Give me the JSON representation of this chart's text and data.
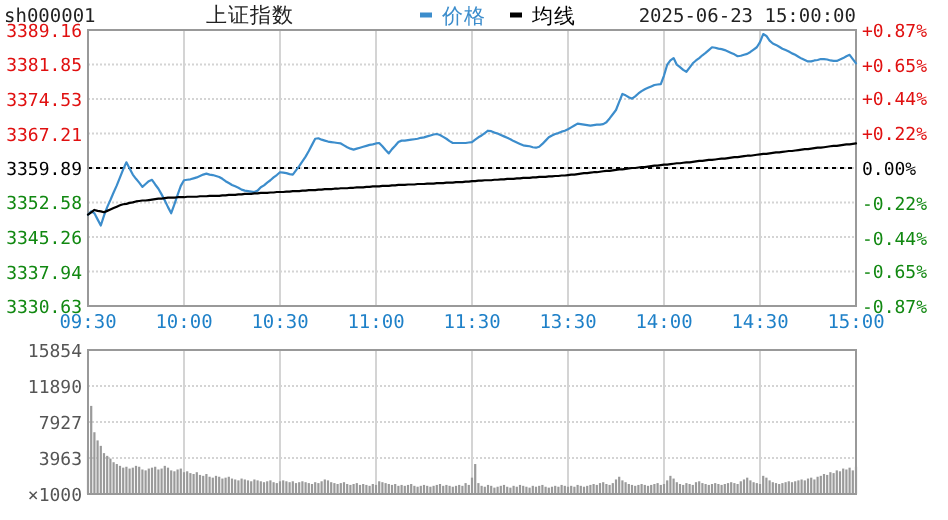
{
  "chart_data": [
    {
      "type": "line",
      "title": "上证指数",
      "annotations": [
        "sh000001",
        "2025-06-23 15:00:00"
      ],
      "legend": "top",
      "grid": true,
      "categories": [
        "09:30",
        null,
        null,
        null,
        null,
        null,
        null,
        null,
        null,
        null,
        null,
        null,
        null,
        null,
        null,
        null,
        null,
        null,
        null,
        null,
        null,
        null,
        null,
        null,
        null,
        null,
        null,
        null,
        null,
        null,
        "10:00",
        null,
        null,
        null,
        null,
        null,
        null,
        null,
        null,
        null,
        null,
        null,
        null,
        null,
        null,
        null,
        null,
        null,
        null,
        null,
        null,
        null,
        null,
        null,
        null,
        null,
        null,
        null,
        null,
        null,
        "10:30",
        null,
        null,
        null,
        null,
        null,
        null,
        null,
        null,
        null,
        null,
        null,
        null,
        null,
        null,
        null,
        null,
        null,
        null,
        null,
        null,
        null,
        null,
        null,
        null,
        null,
        null,
        null,
        null,
        null,
        "11:00",
        null,
        null,
        null,
        null,
        null,
        null,
        null,
        null,
        null,
        null,
        null,
        null,
        null,
        null,
        null,
        null,
        null,
        null,
        null,
        null,
        null,
        null,
        null,
        null,
        null,
        null,
        null,
        null,
        null,
        "11:30",
        null,
        null,
        null,
        null,
        null,
        null,
        null,
        null,
        null,
        null,
        null,
        null,
        null,
        null,
        null,
        null,
        null,
        null,
        null,
        null,
        null,
        null,
        null,
        null,
        null,
        null,
        null,
        null,
        null,
        "13:30",
        null,
        null,
        null,
        null,
        null,
        null,
        null,
        null,
        null,
        null,
        null,
        null,
        null,
        null,
        null,
        null,
        null,
        null,
        null,
        null,
        null,
        null,
        null,
        null,
        null,
        null,
        null,
        null,
        null,
        "14:00",
        null,
        null,
        null,
        null,
        null,
        null,
        null,
        null,
        null,
        null,
        null,
        null,
        null,
        null,
        null,
        null,
        null,
        null,
        null,
        null,
        null,
        null,
        null,
        null,
        null,
        null,
        null,
        null,
        null,
        "14:30",
        null,
        null,
        null,
        null,
        null,
        null,
        null,
        null,
        null,
        null,
        null,
        null,
        null,
        null,
        null,
        null,
        null,
        null,
        null,
        null,
        null,
        null,
        null,
        null,
        null,
        null,
        null,
        null,
        null,
        "15:00"
      ],
      "ylim": [
        3330.63,
        3389.16
      ],
      "yticks": [
        3330.63,
        3337.94,
        3345.26,
        3352.58,
        3359.89,
        3367.21,
        3374.53,
        3381.85,
        3389.16
      ],
      "y2lim": [
        -0.87,
        0.87
      ],
      "y2ticks": [
        {
          "value": -0.87,
          "label": "-0.87%"
        },
        {
          "value": -0.65,
          "label": "-0.65%"
        },
        {
          "value": -0.44,
          "label": "-0.44%"
        },
        {
          "value": -0.22,
          "label": "-0.22%"
        },
        {
          "value": 0,
          "label": "0.00%"
        },
        {
          "value": 0.22,
          "label": "+0.22%"
        },
        {
          "value": 0.44,
          "label": "+0.44%"
        },
        {
          "value": 0.65,
          "label": "+0.65%"
        },
        {
          "value": 0.87,
          "label": "+0.87%"
        }
      ],
      "ref_lines": [
        {
          "axis": "y",
          "value": 3359.89,
          "color": "#000000",
          "line_style": "dashed"
        }
      ],
      "series": [
        {
          "name": "价格",
          "color": "#3c8dcc",
          "values": [
            3350.0,
            3350.7,
            3350.3,
            3349.0,
            3347.7,
            3349.8,
            3351.6,
            3353.1,
            3354.7,
            3356.2,
            3357.9,
            3359.6,
            3361.1,
            3359.8,
            3358.5,
            3357.6,
            3356.8,
            3355.9,
            3356.5,
            3357.1,
            3357.4,
            3356.4,
            3355.5,
            3354.3,
            3353.0,
            3351.6,
            3350.3,
            3352.2,
            3354.2,
            3356.1,
            3357.3,
            3357.4,
            3357.5,
            3357.7,
            3357.9,
            3358.2,
            3358.5,
            3358.7,
            3358.5,
            3358.4,
            3358.2,
            3358.0,
            3357.6,
            3357.1,
            3356.7,
            3356.3,
            3356.0,
            3355.7,
            3355.3,
            3355.1,
            3355.0,
            3354.9,
            3354.8,
            3355.1,
            3355.8,
            3356.2,
            3356.8,
            3357.3,
            3357.9,
            3358.4,
            3359.0,
            3358.9,
            3358.8,
            3358.6,
            3358.5,
            3359.4,
            3360.3,
            3361.3,
            3362.3,
            3363.5,
            3364.8,
            3366.1,
            3366.2,
            3365.9,
            3365.7,
            3365.5,
            3365.4,
            3365.3,
            3365.2,
            3365.1,
            3364.7,
            3364.3,
            3364.0,
            3363.8,
            3364.0,
            3364.2,
            3364.4,
            3364.6,
            3364.8,
            3364.9,
            3365.1,
            3365.2,
            3364.5,
            3363.7,
            3363.0,
            3363.9,
            3364.6,
            3365.4,
            3365.7,
            3365.7,
            3365.8,
            3365.9,
            3366.0,
            3366.1,
            3366.3,
            3366.4,
            3366.6,
            3366.8,
            3367.0,
            3367.1,
            3366.9,
            3366.5,
            3366.1,
            3365.6,
            3365.2,
            3365.2,
            3365.2,
            3365.2,
            3365.2,
            3365.3,
            3365.4,
            3365.9,
            3366.4,
            3366.8,
            3367.3,
            3367.8,
            3367.7,
            3367.4,
            3367.2,
            3366.9,
            3366.6,
            3366.3,
            3366.0,
            3365.6,
            3365.3,
            3365.0,
            3364.7,
            3364.6,
            3364.5,
            3364.3,
            3364.2,
            3364.4,
            3365.0,
            3365.7,
            3366.4,
            3366.8,
            3367.1,
            3367.3,
            3367.6,
            3367.8,
            3368.1,
            3368.5,
            3368.9,
            3369.3,
            3369.2,
            3369.1,
            3369.0,
            3368.9,
            3369.0,
            3369.1,
            3369.1,
            3369.2,
            3369.6,
            3370.4,
            3371.3,
            3372.2,
            3373.9,
            3375.6,
            3375.3,
            3374.9,
            3374.6,
            3375.1,
            3375.7,
            3376.2,
            3376.6,
            3376.9,
            3377.2,
            3377.5,
            3377.6,
            3377.7,
            3379.5,
            3381.8,
            3382.7,
            3383.2,
            3381.8,
            3381.3,
            3380.7,
            3380.3,
            3381.2,
            3382.1,
            3382.7,
            3383.2,
            3383.8,
            3384.3,
            3384.9,
            3385.5,
            3385.4,
            3385.2,
            3385.1,
            3384.9,
            3384.6,
            3384.3,
            3384.0,
            3383.6,
            3383.7,
            3383.9,
            3384.1,
            3384.5,
            3385.0,
            3385.5,
            3386.6,
            3388.3,
            3387.9,
            3386.9,
            3386.3,
            3386.0,
            3385.6,
            3385.2,
            3384.9,
            3384.6,
            3384.2,
            3383.9,
            3383.5,
            3383.1,
            3382.8,
            3382.5,
            3382.5,
            3382.7,
            3382.8,
            3383.0,
            3383.0,
            3382.9,
            3382.7,
            3382.6,
            3382.6,
            3382.9,
            3383.2,
            3383.6,
            3383.9,
            3383.0,
            3382.1
          ]
        },
        {
          "name": "均线",
          "color": "#000000",
          "values": [
            3350.0,
            3350.5,
            3351.0,
            3350.8,
            3350.7,
            3350.5,
            3350.8,
            3351.1,
            3351.4,
            3351.7,
            3352.0,
            3352.2,
            3352.3,
            3352.5,
            3352.6,
            3352.8,
            3352.9,
            3353.0,
            3353.0,
            3353.1,
            3353.2,
            3353.3,
            3353.4,
            3353.4,
            3353.5,
            3353.6,
            3353.6,
            3353.6,
            3353.7,
            3353.7,
            3353.7,
            3353.8,
            3353.8,
            3353.8,
            3353.8,
            3353.9,
            3353.9,
            3353.9,
            3354.0,
            3354.0,
            3354.0,
            3354.0,
            3354.1,
            3354.1,
            3354.2,
            3354.2,
            3354.2,
            3354.3,
            3354.3,
            3354.4,
            3354.4,
            3354.4,
            3354.5,
            3354.5,
            3354.6,
            3354.6,
            3354.6,
            3354.7,
            3354.7,
            3354.8,
            3354.8,
            3354.8,
            3354.9,
            3354.9,
            3355.0,
            3355.0,
            3355.0,
            3355.1,
            3355.1,
            3355.2,
            3355.2,
            3355.2,
            3355.3,
            3355.3,
            3355.4,
            3355.4,
            3355.4,
            3355.5,
            3355.5,
            3355.6,
            3355.6,
            3355.6,
            3355.7,
            3355.7,
            3355.8,
            3355.8,
            3355.8,
            3355.9,
            3355.9,
            3356.0,
            3356.0,
            3356.0,
            3356.1,
            3356.1,
            3356.1,
            3356.2,
            3356.2,
            3356.3,
            3356.3,
            3356.3,
            3356.4,
            3356.4,
            3356.4,
            3356.5,
            3356.5,
            3356.5,
            3356.6,
            3356.6,
            3356.6,
            3356.7,
            3356.7,
            3356.7,
            3356.8,
            3356.8,
            3356.8,
            3356.9,
            3356.9,
            3356.9,
            3357.0,
            3357.0,
            3357.1,
            3357.1,
            3357.2,
            3357.2,
            3357.3,
            3357.3,
            3357.3,
            3357.4,
            3357.4,
            3357.5,
            3357.5,
            3357.6,
            3357.6,
            3357.6,
            3357.7,
            3357.7,
            3357.8,
            3357.8,
            3357.8,
            3357.9,
            3357.9,
            3358.0,
            3358.0,
            3358.0,
            3358.1,
            3358.1,
            3358.2,
            3358.2,
            3358.3,
            3358.3,
            3358.4,
            3358.5,
            3358.5,
            3358.6,
            3358.7,
            3358.8,
            3358.8,
            3358.9,
            3359.0,
            3359.0,
            3359.1,
            3359.2,
            3359.3,
            3359.3,
            3359.4,
            3359.5,
            3359.6,
            3359.6,
            3359.7,
            3359.8,
            3359.9,
            3359.9,
            3360.0,
            3360.1,
            3360.1,
            3360.2,
            3360.3,
            3360.4,
            3360.4,
            3360.5,
            3360.6,
            3360.6,
            3360.7,
            3360.8,
            3360.9,
            3360.9,
            3361.0,
            3361.1,
            3361.1,
            3361.2,
            3361.3,
            3361.4,
            3361.4,
            3361.5,
            3361.6,
            3361.6,
            3361.7,
            3361.8,
            3361.9,
            3361.9,
            3362.0,
            3362.1,
            3362.2,
            3362.2,
            3362.3,
            3362.4,
            3362.5,
            3362.5,
            3362.6,
            3362.7,
            3362.8,
            3362.9,
            3362.9,
            3363.0,
            3363.1,
            3363.2,
            3363.2,
            3363.3,
            3363.4,
            3363.5,
            3363.5,
            3363.6,
            3363.7,
            3363.8,
            3363.9,
            3363.9,
            3364.0,
            3364.1,
            3364.2,
            3364.2,
            3364.3,
            3364.4,
            3364.5,
            3364.6,
            3364.6,
            3364.7,
            3364.8,
            3364.9,
            3364.9,
            3365.0,
            3365.1
          ]
        }
      ]
    },
    {
      "type": "bar",
      "grid": true,
      "tick_labels": "y",
      "ylabel": "×1000",
      "categories": [
        null,
        null,
        null,
        null,
        null,
        null,
        null,
        null,
        null,
        null,
        null,
        null,
        null,
        null,
        null,
        null,
        null,
        null,
        null,
        null,
        null,
        null,
        null,
        null,
        null,
        null,
        null,
        null,
        null,
        null,
        null,
        null,
        null,
        null,
        null,
        null,
        null,
        null,
        null,
        null,
        null,
        null,
        null,
        null,
        null,
        null,
        null,
        null,
        null,
        null,
        null,
        null,
        null,
        null,
        null,
        null,
        null,
        null,
        null,
        null,
        null,
        null,
        null,
        null,
        null,
        null,
        null,
        null,
        null,
        null,
        null,
        null,
        null,
        null,
        null,
        null,
        null,
        null,
        null,
        null,
        null,
        null,
        null,
        null,
        null,
        null,
        null,
        null,
        null,
        null,
        null,
        null,
        null,
        null,
        null,
        null,
        null,
        null,
        null,
        null,
        null,
        null,
        null,
        null,
        null,
        null,
        null,
        null,
        null,
        null,
        null,
        null,
        null,
        null,
        null,
        null,
        null,
        null,
        null,
        null,
        null,
        null,
        null,
        null,
        null,
        null,
        null,
        null,
        null,
        null,
        null,
        null,
        null,
        null,
        null,
        null,
        null,
        null,
        null,
        null,
        null,
        null,
        null,
        null,
        null,
        null,
        null,
        null,
        null,
        null,
        null,
        null,
        null,
        null,
        null,
        null,
        null,
        null,
        null,
        null,
        null,
        null,
        null,
        null,
        null,
        null,
        null,
        null,
        null,
        null,
        null,
        null,
        null,
        null,
        null,
        null,
        null,
        null,
        null,
        null,
        null,
        null,
        null,
        null,
        null,
        null,
        null,
        null,
        null,
        null,
        null,
        null,
        null,
        null,
        null,
        null,
        null,
        null,
        null,
        null,
        null,
        null,
        null,
        null,
        null,
        null,
        null,
        null,
        null,
        null,
        null,
        null,
        null,
        null,
        null,
        null,
        null,
        null,
        null,
        null,
        null,
        null,
        null,
        null,
        null,
        null,
        null,
        null,
        null,
        null,
        null,
        null,
        null,
        null,
        null,
        null,
        null,
        null,
        null,
        null,
        null
      ],
      "ylim": [
        0,
        15854
      ],
      "yticks": [
        3963,
        7927,
        11890,
        15854
      ],
      "series": [
        {
          "color": "#9a9a9a",
          "values": [
            4800,
            9700,
            6800,
            5900,
            5300,
            4500,
            4200,
            3900,
            3500,
            3300,
            3100,
            2900,
            3000,
            2800,
            2900,
            3100,
            3000,
            2700,
            2600,
            2800,
            2900,
            3000,
            2700,
            2800,
            3100,
            2900,
            2600,
            2500,
            2700,
            2800,
            2400,
            2500,
            2300,
            2200,
            2400,
            2100,
            2000,
            2200,
            1900,
            1800,
            2000,
            1900,
            1700,
            1800,
            1900,
            1700,
            1600,
            1500,
            1700,
            1600,
            1500,
            1400,
            1600,
            1500,
            1400,
            1300,
            1400,
            1500,
            1300,
            1200,
            1400,
            1500,
            1400,
            1300,
            1400,
            1200,
            1300,
            1400,
            1300,
            1200,
            1100,
            1300,
            1200,
            1400,
            1600,
            1500,
            1300,
            1200,
            1100,
            1200,
            1300,
            1100,
            1000,
            1100,
            1200,
            1000,
            1100,
            1000,
            900,
            1100,
            1000,
            1400,
            1300,
            1200,
            1100,
            1000,
            1100,
            900,
            1000,
            900,
            1000,
            1100,
            900,
            800,
            900,
            1000,
            900,
            800,
            900,
            1000,
            1100,
            900,
            1000,
            900,
            800,
            900,
            1000,
            900,
            1200,
            1000,
            1800,
            3300,
            1200,
            900,
            800,
            1000,
            900,
            700,
            800,
            900,
            1000,
            800,
            700,
            900,
            800,
            1000,
            900,
            800,
            700,
            900,
            800,
            900,
            1000,
            800,
            700,
            800,
            900,
            800,
            1000,
            900,
            800,
            900,
            800,
            1000,
            900,
            800,
            900,
            1000,
            1100,
            1000,
            1200,
            1300,
            1100,
            1000,
            1200,
            1600,
            1900,
            1500,
            1300,
            1100,
            1000,
            900,
            1000,
            1100,
            1000,
            900,
            1000,
            1100,
            1200,
            1000,
            1100,
            1500,
            2000,
            1700,
            1300,
            1100,
            1000,
            1200,
            1100,
            1000,
            1300,
            1400,
            1200,
            1100,
            1000,
            1100,
            1200,
            1100,
            1000,
            1100,
            1200,
            1300,
            1200,
            1100,
            1400,
            1600,
            1800,
            1500,
            1300,
            1200,
            1100,
            2000,
            1800,
            1500,
            1300,
            1200,
            1100,
            1200,
            1300,
            1400,
            1300,
            1400,
            1500,
            1600,
            1500,
            1700,
            1800,
            1600,
            1900,
            2000,
            2200,
            2100,
            2400,
            2300,
            2600,
            2500,
            2800,
            2700,
            2900,
            2600,
            3000
          ]
        }
      ]
    }
  ]
}
